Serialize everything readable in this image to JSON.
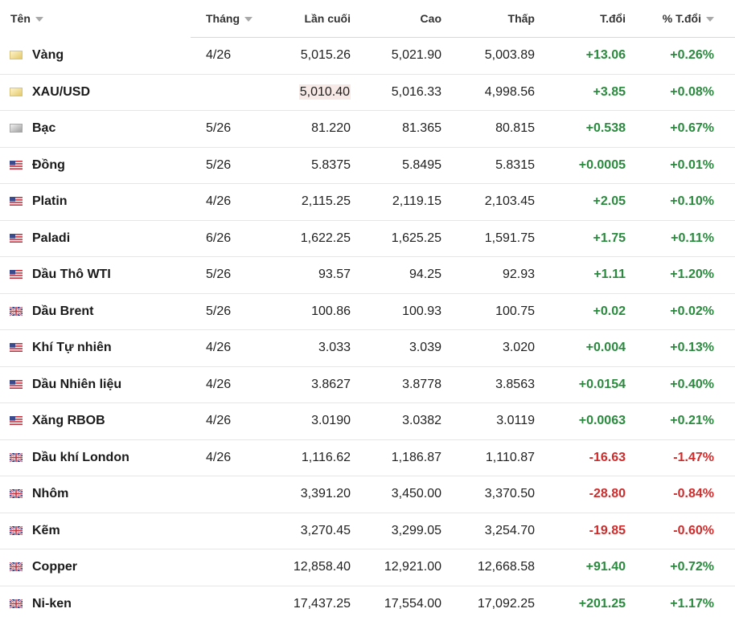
{
  "colors": {
    "positive": "#2a8a3e",
    "negative": "#d02b2b",
    "highlight": "#f6e9e6"
  },
  "headers": {
    "name": "Tên",
    "month": "Tháng",
    "last": "Lần cuối",
    "high": "Cao",
    "low": "Thấp",
    "change": "T.đổi",
    "pct_change": "% T.đổi"
  },
  "rows": [
    {
      "flag": "gold-icon",
      "name": "Vàng",
      "month": "4/26",
      "last": "5,015.26",
      "high": "5,021.90",
      "low": "5,003.89",
      "change": "+13.06",
      "pct": "+0.26%",
      "dir": "up"
    },
    {
      "flag": "gold-icon",
      "name": "XAU/USD",
      "month": "",
      "last": "5,010.40",
      "high": "5,016.33",
      "low": "4,998.56",
      "change": "+3.85",
      "pct": "+0.08%",
      "dir": "up",
      "highlight_last": true
    },
    {
      "flag": "silver-icon",
      "name": "Bạc",
      "month": "5/26",
      "last": "81.220",
      "high": "81.365",
      "low": "80.815",
      "change": "+0.538",
      "pct": "+0.67%",
      "dir": "up"
    },
    {
      "flag": "us-flag-icon",
      "name": "Đồng",
      "month": "5/26",
      "last": "5.8375",
      "high": "5.8495",
      "low": "5.8315",
      "change": "+0.0005",
      "pct": "+0.01%",
      "dir": "up"
    },
    {
      "flag": "us-flag-icon",
      "name": "Platin",
      "month": "4/26",
      "last": "2,115.25",
      "high": "2,119.15",
      "low": "2,103.45",
      "change": "+2.05",
      "pct": "+0.10%",
      "dir": "up"
    },
    {
      "flag": "us-flag-icon",
      "name": "Paladi",
      "month": "6/26",
      "last": "1,622.25",
      "high": "1,625.25",
      "low": "1,591.75",
      "change": "+1.75",
      "pct": "+0.11%",
      "dir": "up"
    },
    {
      "flag": "us-flag-icon",
      "name": "Dầu Thô WTI",
      "month": "5/26",
      "last": "93.57",
      "high": "94.25",
      "low": "92.93",
      "change": "+1.11",
      "pct": "+1.20%",
      "dir": "up"
    },
    {
      "flag": "uk-flag-icon",
      "name": "Dầu Brent",
      "month": "5/26",
      "last": "100.86",
      "high": "100.93",
      "low": "100.75",
      "change": "+0.02",
      "pct": "+0.02%",
      "dir": "up"
    },
    {
      "flag": "us-flag-icon",
      "name": "Khí Tự nhiên",
      "month": "4/26",
      "last": "3.033",
      "high": "3.039",
      "low": "3.020",
      "change": "+0.004",
      "pct": "+0.13%",
      "dir": "up"
    },
    {
      "flag": "us-flag-icon",
      "name": "Dầu Nhiên liệu",
      "month": "4/26",
      "last": "3.8627",
      "high": "3.8778",
      "low": "3.8563",
      "change": "+0.0154",
      "pct": "+0.40%",
      "dir": "up"
    },
    {
      "flag": "us-flag-icon",
      "name": "Xăng RBOB",
      "month": "4/26",
      "last": "3.0190",
      "high": "3.0382",
      "low": "3.0119",
      "change": "+0.0063",
      "pct": "+0.21%",
      "dir": "up"
    },
    {
      "flag": "uk-flag-icon",
      "name": "Dầu khí London",
      "month": "4/26",
      "last": "1,116.62",
      "high": "1,186.87",
      "low": "1,110.87",
      "change": "-16.63",
      "pct": "-1.47%",
      "dir": "down"
    },
    {
      "flag": "uk-flag-icon",
      "name": "Nhôm",
      "month": "",
      "last": "3,391.20",
      "high": "3,450.00",
      "low": "3,370.50",
      "change": "-28.80",
      "pct": "-0.84%",
      "dir": "down"
    },
    {
      "flag": "uk-flag-icon",
      "name": "Kẽm",
      "month": "",
      "last": "3,270.45",
      "high": "3,299.05",
      "low": "3,254.70",
      "change": "-19.85",
      "pct": "-0.60%",
      "dir": "down"
    },
    {
      "flag": "uk-flag-icon",
      "name": "Copper",
      "month": "",
      "last": "12,858.40",
      "high": "12,921.00",
      "low": "12,668.58",
      "change": "+91.40",
      "pct": "+0.72%",
      "dir": "up"
    },
    {
      "flag": "uk-flag-icon",
      "name": "Ni-ken",
      "month": "",
      "last": "17,437.25",
      "high": "17,554.00",
      "low": "17,092.25",
      "change": "+201.25",
      "pct": "+1.17%",
      "dir": "up"
    }
  ]
}
